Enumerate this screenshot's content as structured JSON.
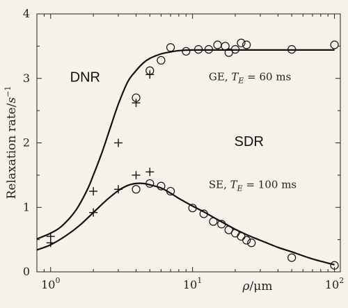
{
  "chart_data": {
    "type": "scatter",
    "title": "",
    "xscale": "log",
    "xlim": [
      0.8,
      110
    ],
    "ylim": [
      0,
      4
    ],
    "xlabel": {
      "symbol": "ρ",
      "unit": "μm"
    },
    "ylabel": {
      "text": "Relaxation rate/",
      "unit": "s",
      "exp": "−1"
    },
    "x_ticks": [
      {
        "value": 1,
        "base": "10",
        "exp": "0"
      },
      {
        "value": 10,
        "base": "10",
        "exp": "1"
      },
      {
        "value": 100,
        "base": "10",
        "exp": "2"
      }
    ],
    "y_ticks": [
      {
        "value": 0,
        "label": "0"
      },
      {
        "value": 1,
        "label": "1"
      },
      {
        "value": 2,
        "label": "2"
      },
      {
        "value": 3,
        "label": "3"
      },
      {
        "value": 4,
        "label": "4"
      }
    ],
    "region_labels": [
      {
        "text": "DNR",
        "x": 1.75,
        "y": 2.95
      },
      {
        "text": "SDR",
        "x": 25,
        "y": 1.95
      }
    ],
    "series": [
      {
        "label": {
          "pre": "GE, ",
          "sym": "T",
          "sub": "E",
          "post": " = 60 ms",
          "x": 13,
          "y": 2.97
        },
        "curve": [
          [
            0.8,
            0.51
          ],
          [
            1,
            0.6
          ],
          [
            1.2,
            0.71
          ],
          [
            1.5,
            0.95
          ],
          [
            1.8,
            1.26
          ],
          [
            2,
            1.5
          ],
          [
            2.3,
            1.85
          ],
          [
            2.6,
            2.2
          ],
          [
            3,
            2.6
          ],
          [
            3.5,
            2.95
          ],
          [
            4,
            3.12
          ],
          [
            4.5,
            3.24
          ],
          [
            5,
            3.31
          ],
          [
            6,
            3.38
          ],
          [
            7,
            3.41
          ],
          [
            8,
            3.43
          ],
          [
            10,
            3.44
          ],
          [
            20,
            3.44
          ],
          [
            50,
            3.44
          ],
          [
            100,
            3.44
          ]
        ],
        "circles": [
          [
            4,
            2.7
          ],
          [
            5,
            3.12
          ],
          [
            6,
            3.28
          ],
          [
            7,
            3.48
          ],
          [
            9,
            3.42
          ],
          [
            11,
            3.45
          ],
          [
            13,
            3.45
          ],
          [
            15,
            3.52
          ],
          [
            17,
            3.5
          ],
          [
            18,
            3.4
          ],
          [
            20,
            3.45
          ],
          [
            22,
            3.55
          ],
          [
            24,
            3.52
          ],
          [
            50,
            3.45
          ],
          [
            100,
            3.52
          ]
        ],
        "crosses": [
          [
            1,
            0.45
          ],
          [
            2,
            1.25
          ],
          [
            3,
            2.0
          ],
          [
            4,
            2.62
          ],
          [
            5,
            3.06
          ]
        ]
      },
      {
        "label": {
          "pre": "SE, ",
          "sym": "T",
          "sub": "E",
          "post": " = 100 ms",
          "x": 13,
          "y": 1.3
        },
        "curve": [
          [
            0.8,
            0.34
          ],
          [
            1,
            0.42
          ],
          [
            1.3,
            0.57
          ],
          [
            1.6,
            0.72
          ],
          [
            2,
            0.92
          ],
          [
            2.5,
            1.12
          ],
          [
            3,
            1.26
          ],
          [
            3.5,
            1.34
          ],
          [
            4,
            1.37
          ],
          [
            4.5,
            1.37
          ],
          [
            5,
            1.35
          ],
          [
            6,
            1.3
          ],
          [
            7,
            1.22
          ],
          [
            8,
            1.14
          ],
          [
            10,
            1.02
          ],
          [
            12,
            0.93
          ],
          [
            15,
            0.81
          ],
          [
            20,
            0.66
          ],
          [
            25,
            0.56
          ],
          [
            30,
            0.49
          ],
          [
            40,
            0.38
          ],
          [
            50,
            0.31
          ],
          [
            70,
            0.2
          ],
          [
            100,
            0.11
          ]
        ],
        "circles": [
          [
            4,
            1.28
          ],
          [
            5,
            1.37
          ],
          [
            6,
            1.33
          ],
          [
            7,
            1.25
          ],
          [
            10,
            0.99
          ],
          [
            12,
            0.9
          ],
          [
            14,
            0.78
          ],
          [
            16,
            0.74
          ],
          [
            18,
            0.65
          ],
          [
            20,
            0.6
          ],
          [
            22,
            0.55
          ],
          [
            24,
            0.49
          ],
          [
            26,
            0.45
          ],
          [
            50,
            0.22
          ],
          [
            100,
            0.1
          ]
        ],
        "crosses": [
          [
            1,
            0.55
          ],
          [
            2,
            0.92
          ],
          [
            3,
            1.28
          ],
          [
            4,
            1.5
          ],
          [
            5,
            1.55
          ]
        ]
      }
    ]
  }
}
